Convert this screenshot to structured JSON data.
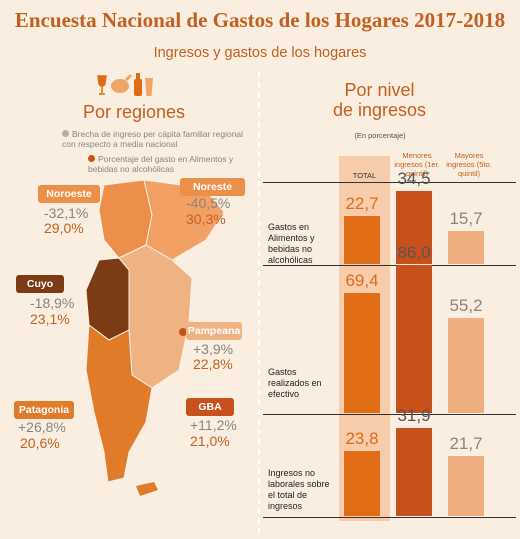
{
  "title": "Encuesta Nacional de Gastos de los Hogares 2017-2018",
  "subtitle": "Ingresos y gastos de los hogares",
  "icons": [
    "wine-icon",
    "chicken-icon",
    "bottle-icon",
    "glass-icon"
  ],
  "colors": {
    "accent": "#c45f1f",
    "bar_total": "#e06c16",
    "bar_low": "#c8501a",
    "bar_high": "#eeae80",
    "total_column_bg": "#f6ccaa",
    "cuyo": "#7b3b14",
    "gba": "#c8501a",
    "patagonia": "#e07b2a",
    "noroeste": "#eb8f4b",
    "pampeana": "#efb283"
  },
  "left": {
    "section_title": "Por regiones",
    "legend": {
      "gap": "Brecha de ingreso per cápita familiar regional con respecto a media nacional",
      "food": "Porcentaje del gasto en Alimentos y bebidas no alcohólicas"
    },
    "regions": [
      {
        "name": "Noroeste",
        "gap": "-32,1%",
        "food": "29,0%"
      },
      {
        "name": "Noreste",
        "gap": "-40,5%",
        "food": "30,3%"
      },
      {
        "name": "Cuyo",
        "gap": "-18,9%",
        "food": "23,1%"
      },
      {
        "name": "Pampeana",
        "gap": "+3,9%",
        "food": "22,8%"
      },
      {
        "name": "Patagonia",
        "gap": "+26,8%",
        "food": "20,6%"
      },
      {
        "name": "GBA",
        "gap": "+11,2%",
        "food": "21,0%"
      }
    ]
  },
  "right": {
    "section_title": "Por nivel\nde ingresos",
    "note": "(En porcentaje)"
  },
  "chart_data": {
    "type": "bar",
    "title": "Por nivel de ingresos",
    "unit": "(En porcentaje)",
    "categories": [
      "Gastos en Alimentos y bebidas no alcohólicas",
      "Gastos realizados en efectivo",
      "Ingresos no laborales sobre el total de ingresos"
    ],
    "series": [
      {
        "name": "TOTAL",
        "values": [
          22.7,
          69.4,
          23.8
        ],
        "labels": [
          "22,7",
          "69,4",
          "23,8"
        ]
      },
      {
        "name": "Menores ingresos (1er. quintil)",
        "values": [
          34.5,
          86.0,
          31.9
        ],
        "labels": [
          "34,5",
          "86,0",
          "31,9"
        ]
      },
      {
        "name": "Mayores ingresos (5to. quintil)",
        "values": [
          15.7,
          55.2,
          21.7
        ],
        "labels": [
          "15,7",
          "55,2",
          "21,7"
        ]
      }
    ]
  }
}
